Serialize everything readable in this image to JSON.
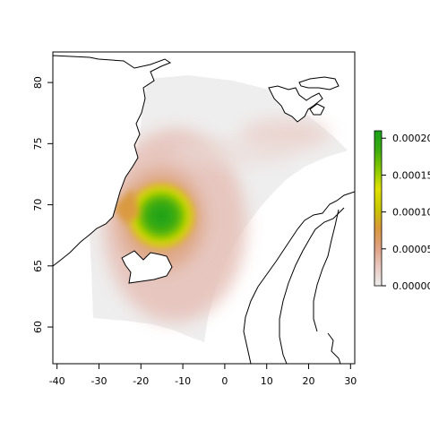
{
  "chart_data": {
    "type": "heatmap",
    "title": "",
    "xlabel": "",
    "ylabel": "",
    "xlim": [
      -41,
      31
    ],
    "ylim": [
      57,
      82.5
    ],
    "x_ticks": [
      -40,
      -30,
      -20,
      -10,
      0,
      10,
      20,
      30
    ],
    "y_ticks": [
      60,
      65,
      70,
      75,
      80
    ],
    "x_tick_labels": [
      "-40",
      "-30",
      "-20",
      "-10",
      "0",
      "10",
      "20",
      "30"
    ],
    "y_tick_labels": [
      "60",
      "65",
      "70",
      "75",
      "80"
    ],
    "legend": {
      "placement": "right",
      "min": 0,
      "max": 0.00021,
      "ticks": [
        0.0,
        5e-05,
        0.0001,
        0.00015,
        0.0002
      ],
      "tick_labels": [
        "0.00000",
        "0.00005",
        "0.00010",
        "0.00015",
        "0.00020"
      ],
      "colors": [
        "#ececec",
        "#e8c8c0",
        "#dfa080",
        "#d8983a",
        "#c8c800",
        "#e0e000",
        "#88c800",
        "#3cac10",
        "#18a018"
      ]
    },
    "density_peaks": [
      {
        "lon": -15,
        "lat": 69.3,
        "value": 0.00021
      },
      {
        "lon": 13,
        "lat": 73,
        "value": 2e-05
      }
    ],
    "grid": false,
    "colors": {
      "coastline": "#000000",
      "background_region": "#eeeeee"
    }
  }
}
